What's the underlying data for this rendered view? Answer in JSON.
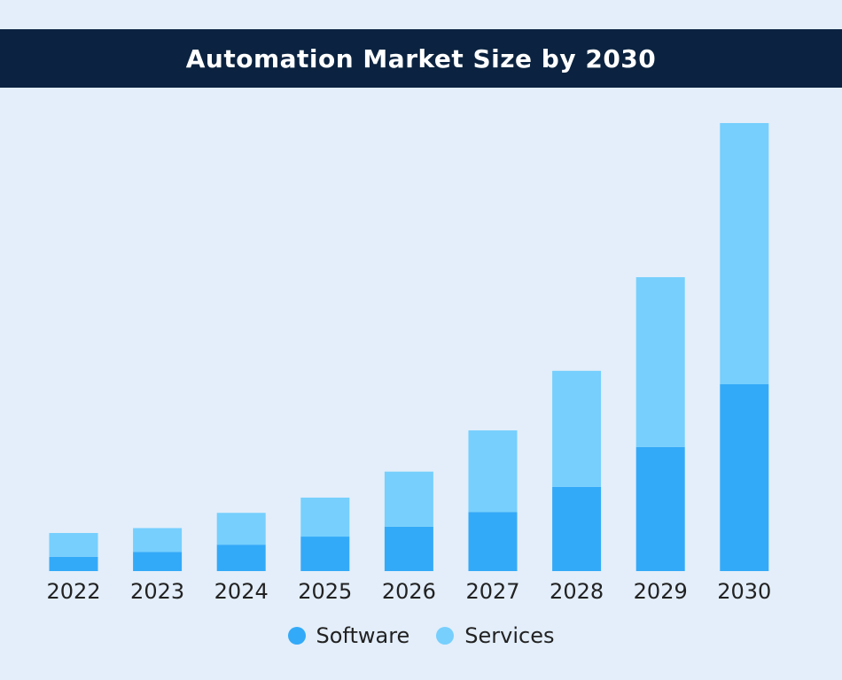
{
  "chart_data": {
    "type": "bar",
    "stacked": true,
    "title": "Automation Market Size by 2030",
    "xlabel": "",
    "ylabel": "",
    "y_axis_shown": false,
    "relative_scale_note_units": "relative (2030 total = 100)",
    "categories": [
      "2022",
      "2023",
      "2024",
      "2025",
      "2026",
      "2027",
      "2028",
      "2029",
      "2030"
    ],
    "series": [
      {
        "name": "Software",
        "color": "#33aaf8",
        "values": [
          3.2,
          4.3,
          5.9,
          7.7,
          9.9,
          13.2,
          18.8,
          27.7,
          41.7
        ]
      },
      {
        "name": "Services",
        "color": "#76cffd",
        "values": [
          5.3,
          5.3,
          7.1,
          8.7,
          12.3,
          18.2,
          25.9,
          37.9,
          58.3
        ]
      }
    ],
    "ylim": [
      0,
      100
    ],
    "grid": false,
    "legend_position": "bottom"
  },
  "colors": {
    "header_bg": "#0b2340",
    "background": "#e3eefa"
  }
}
